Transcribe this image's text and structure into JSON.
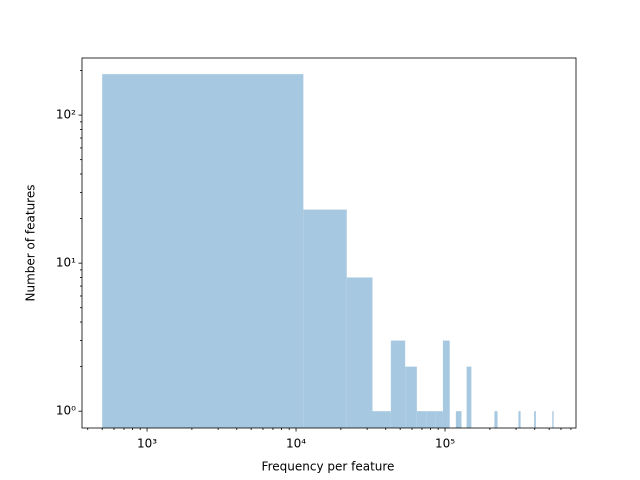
{
  "chart_data": {
    "type": "histogram",
    "xlabel": "Frequency per feature",
    "ylabel": "Number of features",
    "xscale": "log",
    "yscale": "log",
    "color": "#a6c8e0",
    "bins": [
      500,
      11200,
      21900,
      32600,
      43300,
      54000,
      64700,
      75400,
      86100,
      96800,
      107500,
      118200,
      128900,
      139600,
      150300,
      161000,
      171700,
      182400,
      193100,
      203800,
      214500,
      225200,
      235900,
      246600,
      257300,
      268000,
      278700,
      289400,
      300100,
      310800,
      321500,
      332200,
      342900,
      353600,
      364300,
      375000,
      385700,
      396400,
      407100,
      417800,
      428500,
      439200,
      449900,
      460600,
      471300,
      482000,
      492700,
      503400,
      514100,
      524800,
      535500
    ],
    "counts": [
      189,
      23,
      8,
      1,
      3,
      2,
      1,
      1,
      1,
      3,
      0,
      1,
      0,
      2,
      0,
      0,
      0,
      0,
      0,
      0,
      1,
      0,
      0,
      0,
      0,
      0,
      0,
      0,
      0,
      1,
      0,
      0,
      0,
      0,
      0,
      0,
      0,
      1,
      0,
      0,
      0,
      0,
      0,
      0,
      0,
      0,
      0,
      0,
      0,
      1
    ],
    "xlim": [
      366,
      757000
    ],
    "ylim": [
      0.77,
      243
    ],
    "xticks": [
      {
        "value": 1000,
        "label": "10³"
      },
      {
        "value": 10000,
        "label": "10⁴"
      },
      {
        "value": 100000,
        "label": "10⁵"
      }
    ],
    "yticks": [
      {
        "value": 1,
        "label": "10⁰"
      },
      {
        "value": 10,
        "label": "10¹"
      },
      {
        "value": 100,
        "label": "10²"
      }
    ],
    "xminorticks": [
      400,
      500,
      600,
      700,
      800,
      900,
      2000,
      3000,
      4000,
      5000,
      6000,
      7000,
      8000,
      9000,
      20000,
      30000,
      40000,
      50000,
      60000,
      70000,
      80000,
      90000,
      200000,
      300000,
      400000,
      500000,
      600000,
      700000
    ],
    "yminorticks": [
      2,
      3,
      4,
      5,
      6,
      7,
      8,
      9,
      20,
      30,
      40,
      50,
      60,
      70,
      80,
      90,
      200
    ]
  }
}
